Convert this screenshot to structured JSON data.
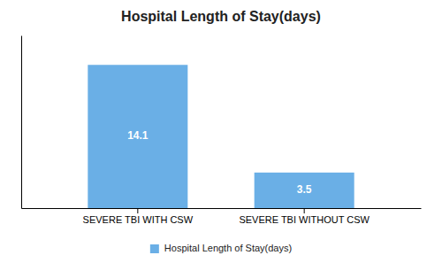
{
  "chart_data": {
    "type": "bar",
    "title": "Hospital Length of Stay(days)",
    "categories": [
      "SEVERE TBI WITH CSW",
      "SEVERE TBI WITHOUT CSW"
    ],
    "series": [
      {
        "name": "Hospital Length of Stay(days)",
        "color": "#6aafe6",
        "values": [
          14.1,
          3.5
        ]
      }
    ],
    "ylim": [
      0,
      17
    ],
    "data_labels": true,
    "legend": "bottom",
    "tick_labels": "x",
    "grid": false
  }
}
